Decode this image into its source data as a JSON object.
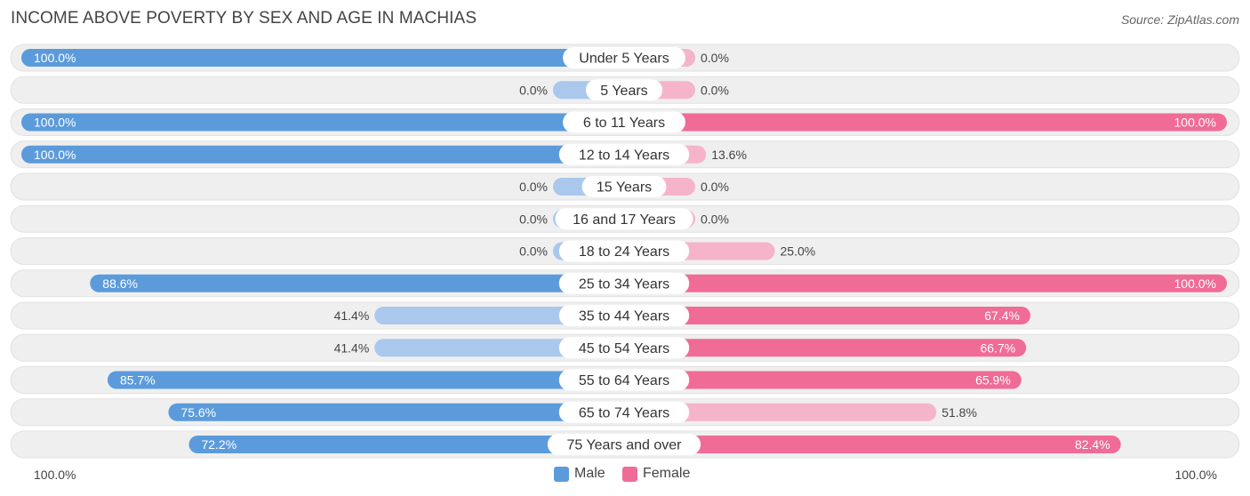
{
  "title": "INCOME ABOVE POVERTY BY SEX AND AGE IN MACHIAS",
  "source": "Source: ZipAtlas.com",
  "colors": {
    "male_strong": "#5b9bdc",
    "male_light": "#a9c8ec",
    "female_strong": "#f06b96",
    "female_light": "#f6b4ca",
    "row_bg": "#efefef"
  },
  "legend": {
    "male": "Male",
    "female": "Female"
  },
  "axis": {
    "left_label": "100.0%",
    "right_label": "100.0%"
  },
  "chart_data": {
    "type": "bar",
    "orientation": "horizontal-diverging",
    "categories": [
      "Under 5 Years",
      "5 Years",
      "6 to 11 Years",
      "12 to 14 Years",
      "15 Years",
      "16 and 17 Years",
      "18 to 24 Years",
      "25 to 34 Years",
      "35 to 44 Years",
      "45 to 54 Years",
      "55 to 64 Years",
      "65 to 74 Years",
      "75 Years and over"
    ],
    "series": [
      {
        "name": "Male",
        "values": [
          100.0,
          0.0,
          100.0,
          100.0,
          0.0,
          0.0,
          0.0,
          88.6,
          41.4,
          41.4,
          85.7,
          75.6,
          72.2
        ],
        "labels": [
          "100.0%",
          "0.0%",
          "100.0%",
          "100.0%",
          "0.0%",
          "0.0%",
          "0.0%",
          "88.6%",
          "41.4%",
          "41.4%",
          "85.7%",
          "75.6%",
          "72.2%"
        ]
      },
      {
        "name": "Female",
        "values": [
          0.0,
          0.0,
          100.0,
          13.6,
          0.0,
          0.0,
          25.0,
          100.0,
          67.4,
          66.7,
          65.9,
          51.8,
          82.4
        ],
        "labels": [
          "0.0%",
          "0.0%",
          "100.0%",
          "13.6%",
          "0.0%",
          "0.0%",
          "25.0%",
          "100.0%",
          "67.4%",
          "66.7%",
          "65.9%",
          "51.8%",
          "82.4%"
        ]
      }
    ],
    "xlim": [
      0,
      100
    ],
    "legend_position": "bottom-center"
  }
}
